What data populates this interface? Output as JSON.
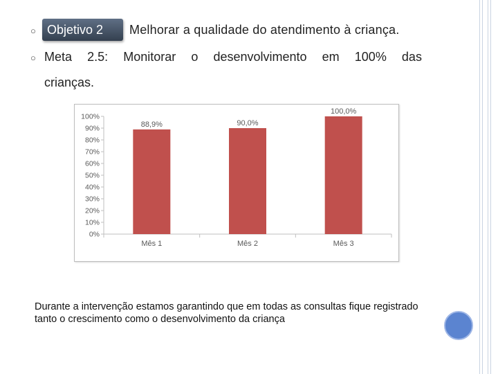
{
  "slide": {
    "objective_label": "Objetivo 2",
    "objective_text": "Melhorar a qualidade do atendimento à criança.",
    "goal_words": [
      "Meta",
      "2.5:",
      "Monitorar",
      "o",
      "desenvolvimento",
      "em",
      "100%",
      "das"
    ],
    "goal_continuation": "crianças.",
    "caption": "Durante a intervenção estamos garantindo que em todas as consultas fique registrado tanto o crescimento como o desenvolvimento da criança",
    "bullet_icon": "ring-bullet-icon"
  },
  "colors": {
    "bar": "#c0504d",
    "axis_text": "#595959",
    "grid": "#d9d9d9",
    "circle": "#5b84d0"
  },
  "chart_data": {
    "type": "bar",
    "categories": [
      "Mês 1",
      "Mês 2",
      "Mês 3"
    ],
    "values": [
      88.9,
      90.0,
      100.0
    ],
    "data_labels": [
      "88,9%",
      "90,0%",
      "100,0%"
    ],
    "y_ticks": [
      "0%",
      "10%",
      "20%",
      "30%",
      "40%",
      "50%",
      "60%",
      "70%",
      "80%",
      "90%",
      "100%"
    ],
    "ylim": [
      0,
      100
    ],
    "title": "",
    "xlabel": "",
    "ylabel": "",
    "grid": false,
    "legend": "none"
  }
}
